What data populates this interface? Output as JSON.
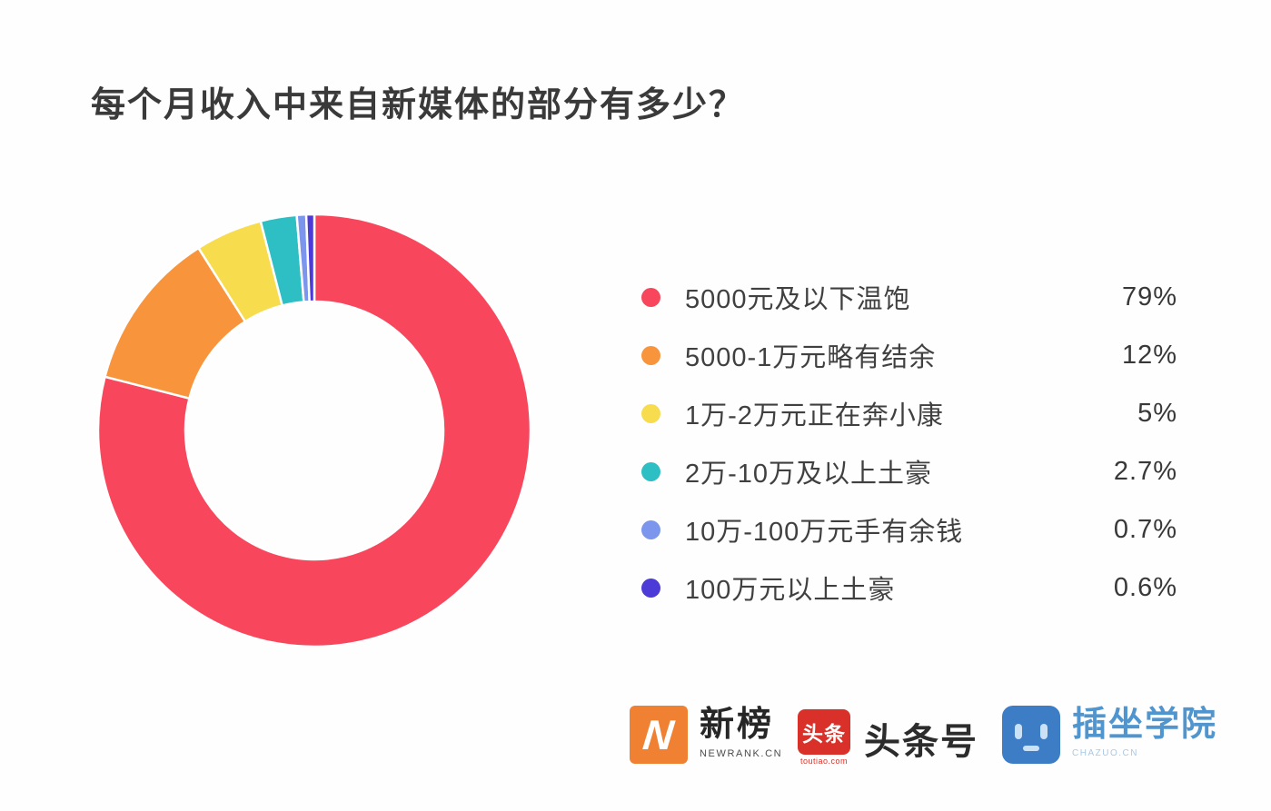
{
  "title": "每个月收入中来自新媒体的部分有多少？",
  "chart_data": {
    "type": "pie",
    "variant": "donut",
    "start_angle": "top",
    "direction": "clockwise",
    "legend_position": "right",
    "categories": [
      "5000元及以下温饱",
      "5000-1万元略有结余",
      "1万-2万元正在奔小康",
      "2万-10万及以上土豪",
      "10万-100万元手有余钱",
      "100万元以上土豪"
    ],
    "values": [
      79,
      12,
      5,
      2.7,
      0.7,
      0.6
    ],
    "unit": "%",
    "colors": [
      "#F8475C",
      "#F8953C",
      "#F7DC4E",
      "#2EBFC5",
      "#7B96EC",
      "#4C3BD6"
    ],
    "title": "每个月收入中来自新媒体的部分有多少？"
  },
  "legend": {
    "items": [
      {
        "label": "5000元及以下温饱",
        "value_label": "79%",
        "color": "#F8475C"
      },
      {
        "label": "5000-1万元略有结余",
        "value_label": "12%",
        "color": "#F8953C"
      },
      {
        "label": "1万-2万元正在奔小康",
        "value_label": "5%",
        "color": "#F7DC4E"
      },
      {
        "label": "2万-10万及以上土豪",
        "value_label": "2.7%",
        "color": "#2EBFC5"
      },
      {
        "label": "10万-100万元手有余钱",
        "value_label": "0.7%",
        "color": "#7B96EC"
      },
      {
        "label": "100万元以上土豪",
        "value_label": "0.6%",
        "color": "#4C3BD6"
      }
    ]
  },
  "footer": {
    "newrank": {
      "logo_letter": "N",
      "name": "新榜",
      "subtitle": "NEWRANK.CN",
      "brand_color": "#F08133"
    },
    "toutiao": {
      "logo_text": "头条",
      "logo_subtext": "toutiao.com",
      "name": "头条号",
      "brand_color": "#D93129"
    },
    "chazuo": {
      "name": "插坐学院",
      "subtitle": "CHAZUO.CN",
      "brand_color": "#3C7DC6"
    }
  }
}
